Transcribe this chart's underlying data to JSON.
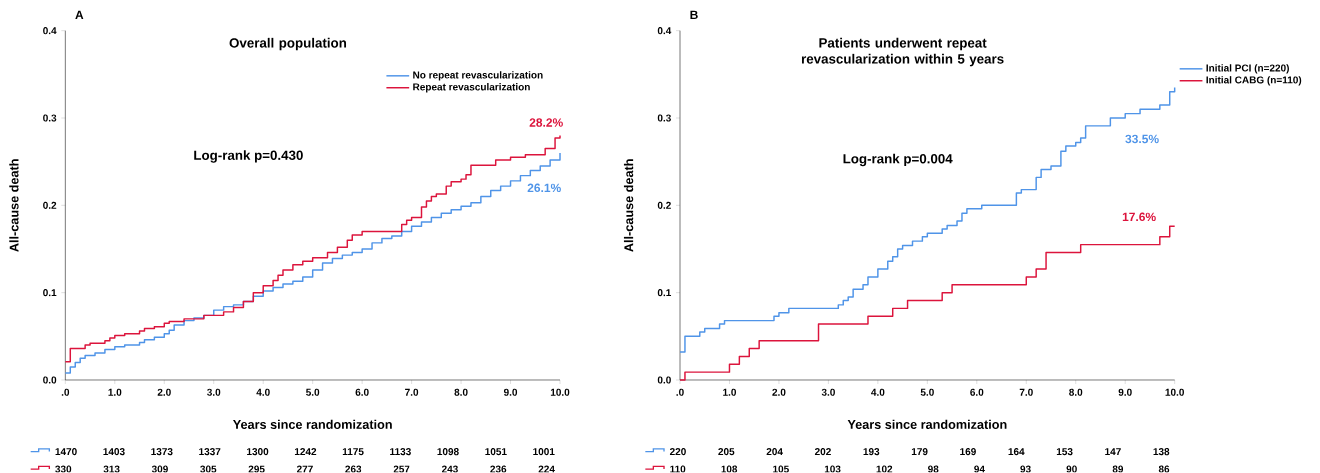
{
  "chart_data": [
    {
      "type": "step",
      "title": "Overall population",
      "xlabel": "Years since randomization",
      "ylabel": "All-cause death",
      "xlim": [
        0,
        10
      ],
      "ylim": [
        0,
        0.4
      ],
      "xticks": [
        {
          "value": 0,
          "label": ".0"
        },
        {
          "value": 1,
          "label": "1.0"
        },
        {
          "value": 2,
          "label": "2.0"
        },
        {
          "value": 3,
          "label": "3.0"
        },
        {
          "value": 4,
          "label": "4.0"
        },
        {
          "value": 5,
          "label": "5.0"
        },
        {
          "value": 6,
          "label": "6.0"
        },
        {
          "value": 7,
          "label": "7.0"
        },
        {
          "value": 8,
          "label": "8.0"
        },
        {
          "value": 9,
          "label": "9.0"
        },
        {
          "value": 10,
          "label": "10.0"
        }
      ],
      "yticks": [
        {
          "value": 0,
          "label": "0.0"
        },
        0.1,
        0.2,
        0.3,
        0.4
      ],
      "legend": "top right",
      "series": [
        {
          "name": "No repeat revascularization",
          "color": "#4f94e8",
          "x": [
            0,
            0.1,
            0.2,
            0.3,
            0.4,
            0.6,
            0.8,
            1.0,
            1.2,
            1.5,
            1.6,
            1.8,
            2.0,
            2.1,
            2.2,
            2.4,
            2.6,
            2.8,
            3.0,
            3.2,
            3.4,
            3.6,
            3.8,
            4.0,
            4.2,
            4.4,
            4.6,
            4.8,
            5.0,
            5.2,
            5.4,
            5.6,
            5.8,
            6.0,
            6.2,
            6.4,
            6.6,
            6.8,
            7.0,
            7.2,
            7.4,
            7.6,
            7.8,
            8.0,
            8.2,
            8.4,
            8.6,
            8.8,
            9.0,
            9.2,
            9.4,
            9.6,
            9.8,
            10.0
          ],
          "values": [
            0.008,
            0.015,
            0.02,
            0.025,
            0.028,
            0.031,
            0.035,
            0.038,
            0.04,
            0.043,
            0.046,
            0.049,
            0.053,
            0.057,
            0.063,
            0.068,
            0.071,
            0.074,
            0.08,
            0.084,
            0.086,
            0.09,
            0.096,
            0.102,
            0.106,
            0.11,
            0.113,
            0.118,
            0.126,
            0.134,
            0.139,
            0.143,
            0.146,
            0.15,
            0.157,
            0.162,
            0.165,
            0.17,
            0.176,
            0.181,
            0.186,
            0.191,
            0.195,
            0.199,
            0.203,
            0.21,
            0.217,
            0.222,
            0.228,
            0.234,
            0.24,
            0.245,
            0.252,
            0.26
          ]
        },
        {
          "name": "Repeat revascularization",
          "color": "#dc143c",
          "x": [
            0,
            0.1,
            0.4,
            0.5,
            0.8,
            0.9,
            1.0,
            1.2,
            1.5,
            1.6,
            1.8,
            2.0,
            2.1,
            2.4,
            2.8,
            3.2,
            3.4,
            3.6,
            3.8,
            4.0,
            4.2,
            4.3,
            4.4,
            4.6,
            4.8,
            5.0,
            5.3,
            5.5,
            5.7,
            5.8,
            6.0,
            6.8,
            6.9,
            7.0,
            7.2,
            7.3,
            7.4,
            7.5,
            7.7,
            7.8,
            8.0,
            8.1,
            8.2,
            8.7,
            9.0,
            9.3,
            9.7,
            9.9,
            10.0
          ],
          "values": [
            0.021,
            0.036,
            0.04,
            0.042,
            0.045,
            0.048,
            0.051,
            0.053,
            0.056,
            0.059,
            0.061,
            0.065,
            0.067,
            0.07,
            0.074,
            0.078,
            0.083,
            0.09,
            0.1,
            0.108,
            0.114,
            0.12,
            0.126,
            0.132,
            0.136,
            0.14,
            0.146,
            0.152,
            0.16,
            0.166,
            0.17,
            0.178,
            0.183,
            0.186,
            0.198,
            0.205,
            0.21,
            0.213,
            0.222,
            0.227,
            0.23,
            0.235,
            0.246,
            0.252,
            0.255,
            0.258,
            0.265,
            0.277,
            0.28
          ]
        }
      ],
      "annotations": [
        "A",
        "Log-rank p=0.430",
        "1470 1403 1373 1337 1300 1242 1175 1133 1098 1051 1001",
        "330 313 309 305 295 277 263 257 243 236 224",
        "26.1%",
        "28.2%"
      ]
    },
    {
      "type": "step",
      "title": "Patients underwent repeat revascularization within 5 years",
      "xlabel": "Years since randomization",
      "ylabel": "All-cause death",
      "xlim": [
        0,
        10
      ],
      "ylim": [
        0,
        0.4
      ],
      "xticks": [
        {
          "value": 0,
          "label": ".0"
        },
        {
          "value": 1,
          "label": "1.0"
        },
        {
          "value": 2,
          "label": "2.0"
        },
        {
          "value": 3,
          "label": "3.0"
        },
        {
          "value": 4,
          "label": "4.0"
        },
        {
          "value": 5,
          "label": "5.0"
        },
        {
          "value": 6,
          "label": "6.0"
        },
        {
          "value": 7,
          "label": "7.0"
        },
        {
          "value": 8,
          "label": "8.0"
        },
        {
          "value": 9,
          "label": "9.0"
        },
        {
          "value": 10,
          "label": "10.0"
        }
      ],
      "yticks": [
        {
          "value": 0,
          "label": "0.0"
        },
        0.1,
        0.2,
        0.3,
        0.4
      ],
      "legend": "right",
      "series": [
        {
          "name": "Initial PCI (n=220)",
          "color": "#4f94e8",
          "x": [
            0,
            0.1,
            0.4,
            0.5,
            0.8,
            0.9,
            1.9,
            2.0,
            2.2,
            3.2,
            3.3,
            3.4,
            3.5,
            3.7,
            3.8,
            4.0,
            4.2,
            4.3,
            4.4,
            4.5,
            4.7,
            4.9,
            5.0,
            5.3,
            5.4,
            5.6,
            5.7,
            5.8,
            6.1,
            6.8,
            6.9,
            7.2,
            7.3,
            7.5,
            7.7,
            7.8,
            8.0,
            8.1,
            8.2,
            8.7,
            9.0,
            9.3,
            9.7,
            9.9,
            10.0
          ],
          "values": [
            0.032,
            0.05,
            0.055,
            0.059,
            0.064,
            0.068,
            0.073,
            0.077,
            0.082,
            0.086,
            0.091,
            0.095,
            0.104,
            0.109,
            0.118,
            0.127,
            0.136,
            0.141,
            0.15,
            0.154,
            0.159,
            0.164,
            0.168,
            0.173,
            0.177,
            0.182,
            0.191,
            0.196,
            0.2,
            0.214,
            0.218,
            0.232,
            0.241,
            0.245,
            0.262,
            0.268,
            0.272,
            0.277,
            0.291,
            0.3,
            0.305,
            0.31,
            0.315,
            0.33,
            0.335
          ]
        },
        {
          "name": "Initial CABG (n=110)",
          "color": "#dc143c",
          "x": [
            0,
            0.1,
            1.0,
            1.2,
            1.4,
            1.6,
            2.8,
            3.8,
            4.3,
            4.6,
            5.3,
            5.5,
            7.0,
            7.2,
            7.4,
            8.1,
            9.7,
            9.9,
            10.0
          ],
          "values": [
            0.0,
            0.009,
            0.018,
            0.027,
            0.036,
            0.045,
            0.064,
            0.073,
            0.082,
            0.091,
            0.1,
            0.109,
            0.118,
            0.127,
            0.146,
            0.155,
            0.164,
            0.176,
            0.176
          ]
        }
      ],
      "annotations": [
        "B",
        "Log-rank p=0.004",
        "220 205 204 202 193 179 169 164 153 147 138",
        "110 108 105 103 102 98 94 93 90 89 86",
        "33.5%",
        "17.6%"
      ]
    }
  ]
}
